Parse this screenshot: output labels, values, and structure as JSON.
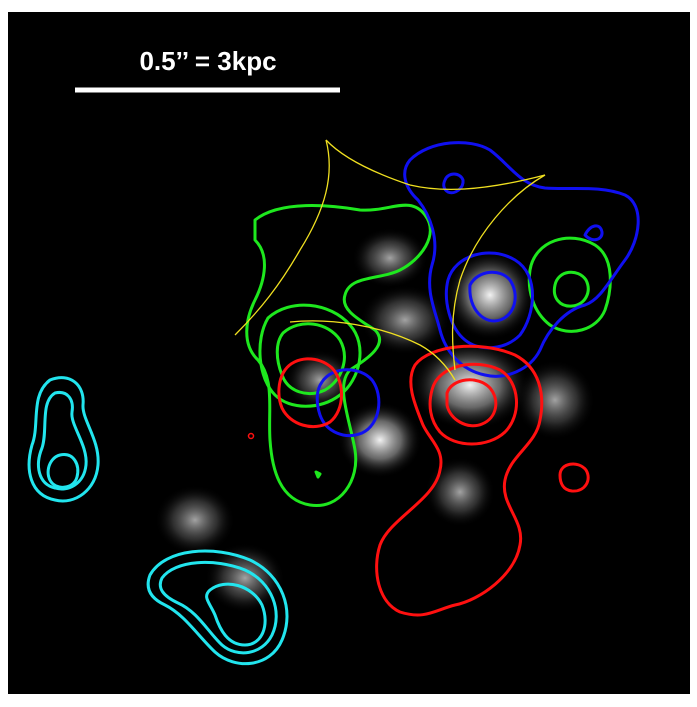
{
  "scale_bar": {
    "label": "0.5’’ = 3kpc"
  }
}
